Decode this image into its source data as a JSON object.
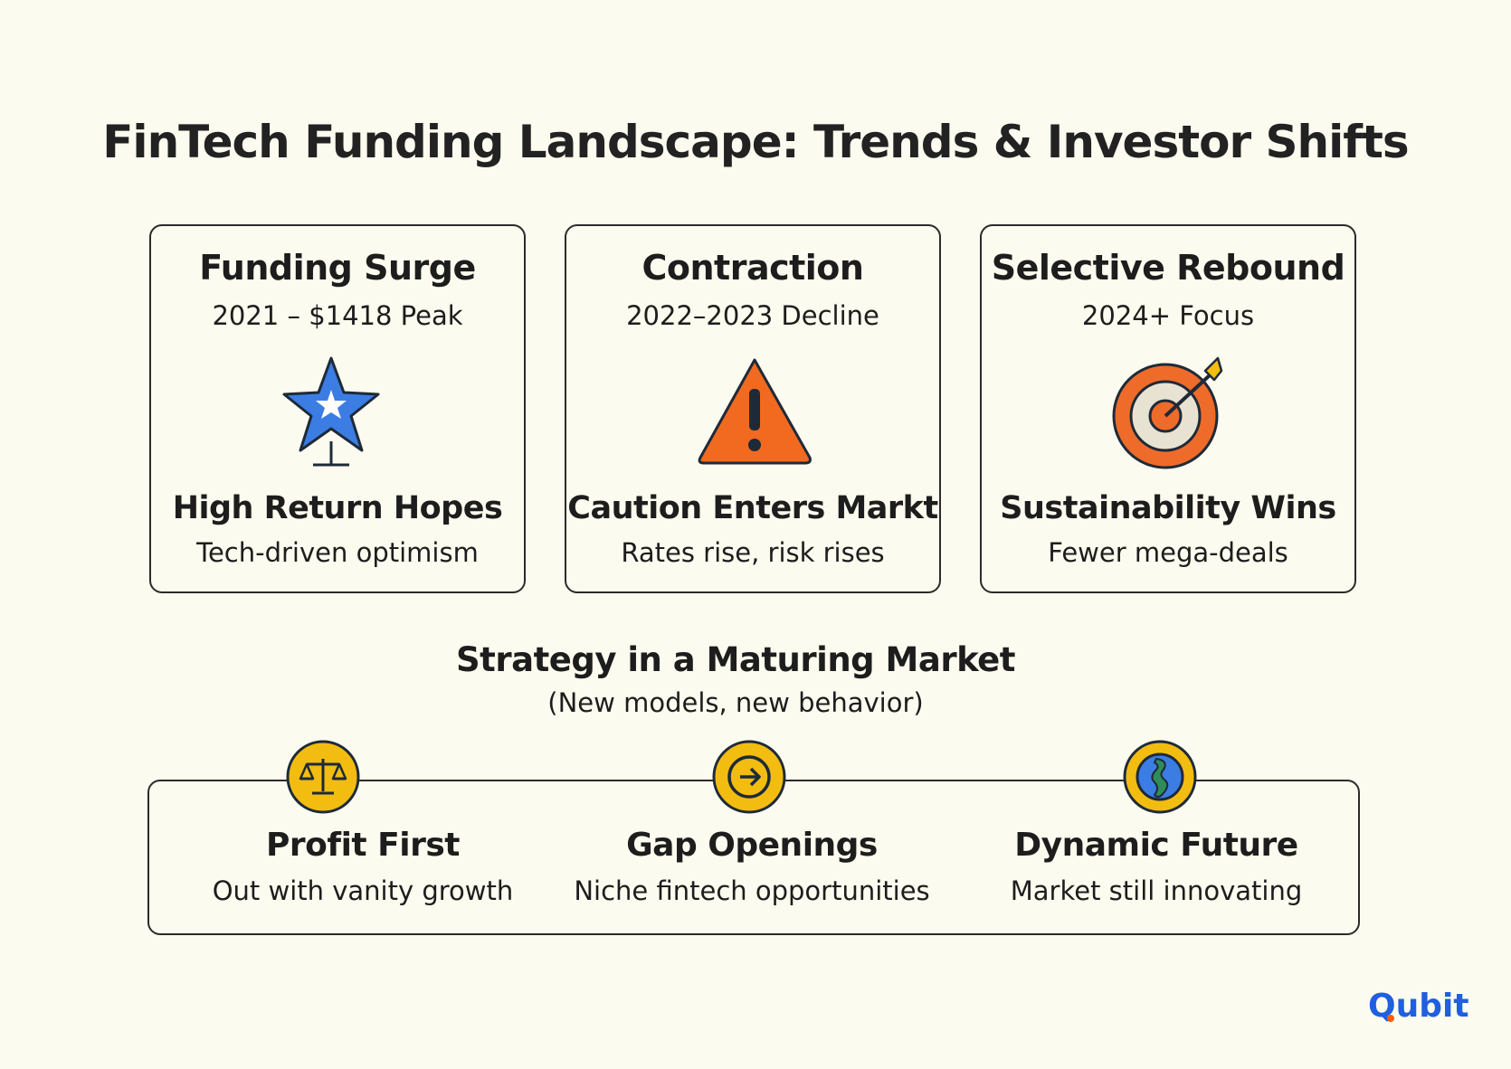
{
  "title": "FinTech Funding Landscape: Trends & Investor Shifts",
  "cards": [
    {
      "title": "Funding Surge",
      "subtitle": "2021 – $1418 Peak",
      "icon": "star-icon",
      "heading": "High Return Hopes",
      "description": "Tech-driven optimism"
    },
    {
      "title": "Contraction",
      "subtitle": "2022–2023 Decline",
      "icon": "warning-icon",
      "heading": "Caution Enters Markt",
      "description": "Rates rise, risk rises"
    },
    {
      "title": "Selective Rebound",
      "subtitle": "2024+ Focus",
      "icon": "target-icon",
      "heading": "Sustainability Wins",
      "description": "Fewer mega-deals"
    }
  ],
  "strategy": {
    "title": "Strategy in a Maturing Market",
    "subtitle": "(New models, new behavior)",
    "items": [
      {
        "heading": "Profit First",
        "description": "Out with vanity growth",
        "icon": "scales-icon"
      },
      {
        "heading": "Gap Openings",
        "description": "Niche fintech opportunities",
        "icon": "arrow-circle-icon"
      },
      {
        "heading": "Dynamic Future",
        "description": "Market still innovating",
        "icon": "globe-icon"
      }
    ]
  },
  "brand": {
    "logo_text": "Qubit",
    "logo_color": "#1f5fe0",
    "accent_orange": "#ff5c0a"
  },
  "colors": {
    "background": "#fcfbef",
    "star_blue": "#3b7de3",
    "warning_orange": "#f26a1f",
    "target_orange": "#ef6b2a",
    "icon_yellow": "#f2bd10"
  }
}
